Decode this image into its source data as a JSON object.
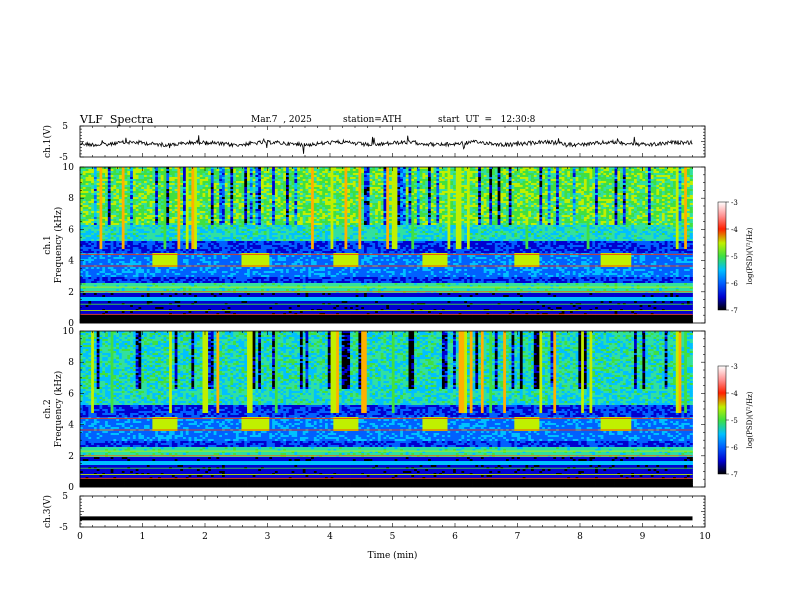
{
  "header": {
    "title": "VLF  Spectra",
    "date": "Mar.7  , 2025",
    "station": "station=ATH",
    "start_ut": "start  UT  =   12:30:8"
  },
  "chart_data": [
    {
      "type": "line",
      "panel": "ch1-waveform",
      "ylabel": "ch.1(V)",
      "ylim": [
        -5,
        5
      ],
      "y_ticklabels": [
        "5",
        "-5"
      ],
      "xlim": [
        0,
        10
      ],
      "series_description": "noisy waveform around 0 V",
      "series_color": "#000000"
    },
    {
      "type": "heatmap",
      "panel": "ch1-spectrogram",
      "ylabel": "ch.1\nFrequency (kHz)",
      "ylabel_line1": "ch.1",
      "ylabel_line2": "Frequency  (kHz)",
      "ylim": [
        0,
        10
      ],
      "y_ticklabels": [
        "0",
        "2",
        "4",
        "6",
        "8",
        "10"
      ],
      "xlim": [
        0,
        10
      ],
      "data_end_min": 9.8,
      "periodic_4khz_bursts_min": [
        [
          1.15,
          1.55
        ],
        [
          2.6,
          3.05
        ],
        [
          4.05,
          4.45
        ],
        [
          5.5,
          5.9
        ],
        [
          6.95,
          7.35
        ],
        [
          8.35,
          8.8
        ]
      ],
      "colorbar": {
        "label": "log(PSD)(V²/Hz)",
        "range": [
          -7,
          -3
        ],
        "ticks": [
          "-3",
          "-4",
          "-5",
          "-6",
          "-7"
        ]
      }
    },
    {
      "type": "heatmap",
      "panel": "ch2-spectrogram",
      "ylabel_line1": "ch.2",
      "ylabel_line2": "Frequency  (kHz)",
      "ylim": [
        0,
        10
      ],
      "y_ticklabels": [
        "0",
        "2",
        "4",
        "6",
        "8",
        "10"
      ],
      "xlim": [
        0,
        10
      ],
      "data_end_min": 9.8,
      "periodic_4khz_bursts_min": [
        [
          1.15,
          1.55
        ],
        [
          2.6,
          3.05
        ],
        [
          4.05,
          4.45
        ],
        [
          5.5,
          5.9
        ],
        [
          6.95,
          7.35
        ],
        [
          8.35,
          8.8
        ]
      ],
      "colorbar": {
        "label": "log(PSD)(V²/Hz)",
        "range": [
          -7,
          -3
        ],
        "ticks": [
          "-3",
          "-4",
          "-5",
          "-6",
          "-7"
        ]
      }
    },
    {
      "type": "line",
      "panel": "ch3-waveform",
      "ylabel": "ch.3(V)",
      "ylim": [
        -5,
        5
      ],
      "y_ticklabels": [
        "5",
        "-5"
      ],
      "xlim": [
        0,
        10
      ],
      "constant_value": -2.2,
      "series_color": "#000000"
    }
  ],
  "xaxis": {
    "label": "Time  (min)",
    "ticks": [
      0,
      1,
      2,
      3,
      4,
      5,
      6,
      7,
      8,
      9,
      10
    ],
    "ticklabels": [
      "0",
      "1",
      "2",
      "3",
      "4",
      "5",
      "6",
      "7",
      "8",
      "9",
      "10"
    ]
  },
  "colorscale": [
    "#000000",
    "#0000d0",
    "#0060ff",
    "#00c0ff",
    "#30e0a0",
    "#40e040",
    "#c0f000",
    "#ffb000",
    "#ff2000",
    "#ffffff"
  ]
}
